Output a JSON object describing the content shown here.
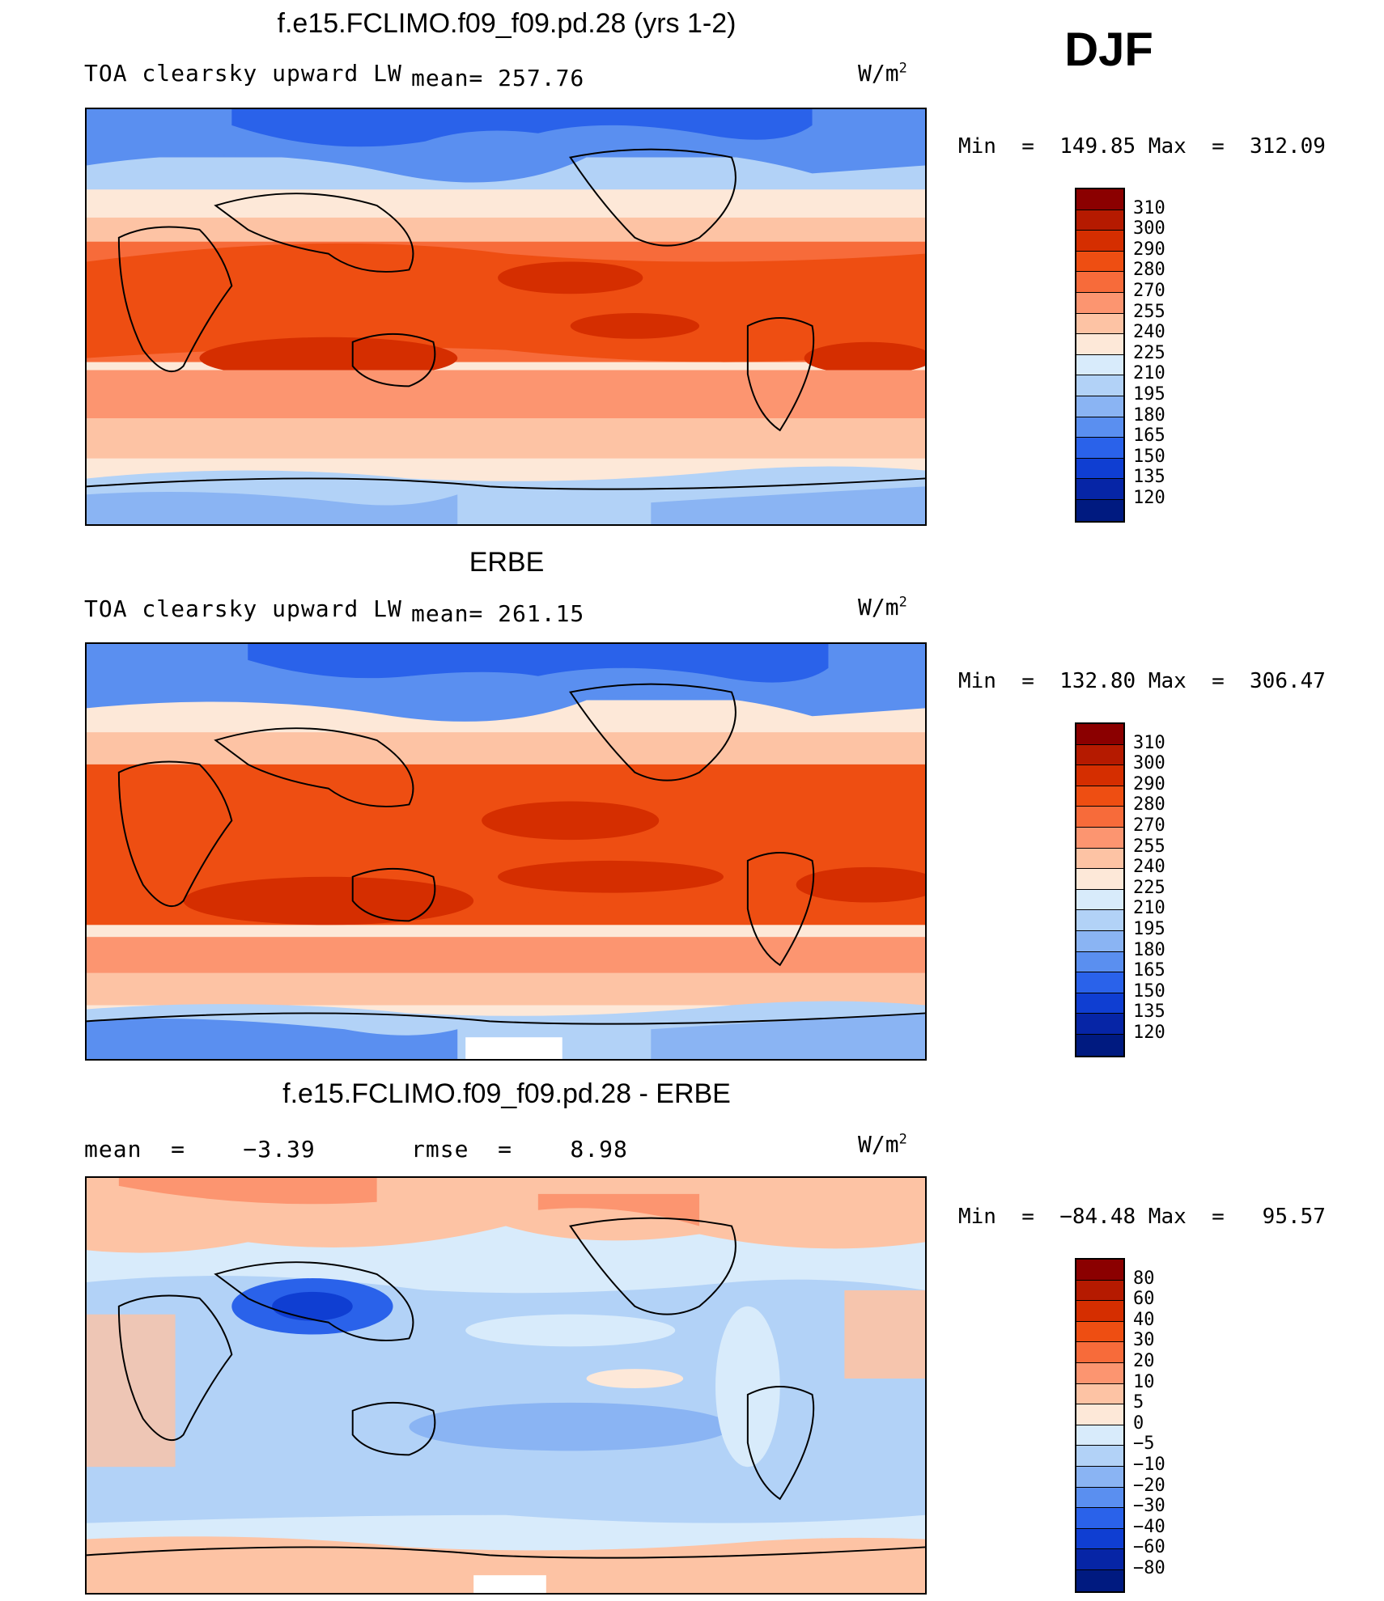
{
  "season": "DJF",
  "units_prefix": "W/m",
  "units_exp": "2",
  "panels": [
    {
      "title": "f.e15.FCLIMO.f09_f09.pd.28 (yrs 1-2)",
      "variable": "TOA clearsky upward LW",
      "stat": "mean= 257.76",
      "minmax": "Min  =  149.85 Max  =  312.09",
      "colorbar": {
        "labels": [
          "310",
          "300",
          "290",
          "280",
          "270",
          "255",
          "240",
          "225",
          "210",
          "195",
          "180",
          "165",
          "150",
          "135",
          "120"
        ],
        "colors": [
          "#8b0000",
          "#b51a00",
          "#d52e00",
          "#ee4e12",
          "#f76b3a",
          "#fc9570",
          "#fdc3a4",
          "#fde8d8",
          "#d8ebfb",
          "#b2d2f7",
          "#8ab4f3",
          "#5a8ff0",
          "#2a62ea",
          "#0f3ed2",
          "#0625a6",
          "#001a80"
        ]
      }
    },
    {
      "title": "ERBE",
      "variable": "TOA clearsky upward LW",
      "stat": "mean= 261.15",
      "minmax": "Min  =  132.80 Max  =  306.47",
      "colorbar": {
        "labels": [
          "310",
          "300",
          "290",
          "280",
          "270",
          "255",
          "240",
          "225",
          "210",
          "195",
          "180",
          "165",
          "150",
          "135",
          "120"
        ],
        "colors": [
          "#8b0000",
          "#b51a00",
          "#d52e00",
          "#ee4e12",
          "#f76b3a",
          "#fc9570",
          "#fdc3a4",
          "#fde8d8",
          "#d8ebfb",
          "#b2d2f7",
          "#8ab4f3",
          "#5a8ff0",
          "#2a62ea",
          "#0f3ed2",
          "#0625a6",
          "#001a80"
        ]
      }
    },
    {
      "title": "f.e15.FCLIMO.f09_f09.pd.28 - ERBE",
      "mean_text": "mean  =    −3.39",
      "rmse_text": "rmse  =    8.98",
      "minmax": "Min  =  −84.48 Max  =   95.57",
      "colorbar": {
        "labels": [
          "80",
          "60",
          "40",
          "30",
          "20",
          "10",
          "5",
          "0",
          "−5",
          "−10",
          "−20",
          "−30",
          "−40",
          "−60",
          "−80"
        ],
        "colors": [
          "#8b0000",
          "#b51a00",
          "#d52e00",
          "#ee4e12",
          "#f76b3a",
          "#fc9570",
          "#fdc3a4",
          "#fde8d8",
          "#d8ebfb",
          "#b2d2f7",
          "#8ab4f3",
          "#5a8ff0",
          "#2a62ea",
          "#0f3ed2",
          "#0625a6",
          "#001a80"
        ]
      }
    }
  ]
}
